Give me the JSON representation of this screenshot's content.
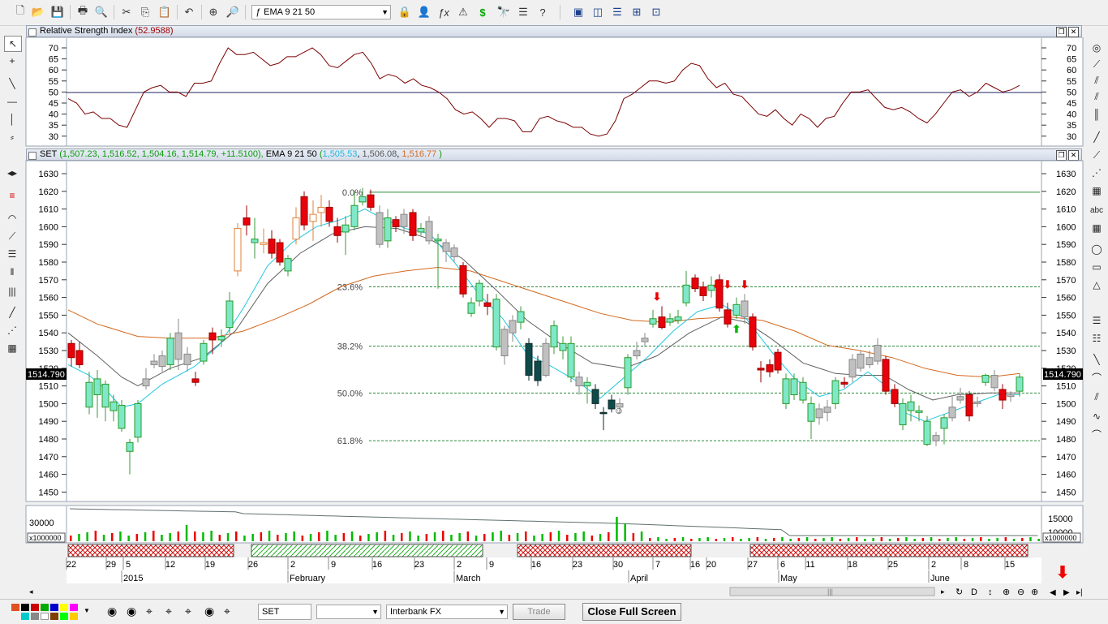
{
  "toolbar": {
    "indicator_combo": "EMA 9 21 50"
  },
  "rsi_panel": {
    "title": "Relative Strength Index",
    "value": "(52.9588)",
    "yticks": [
      "70",
      "65",
      "60",
      "55",
      "50",
      "45",
      "40",
      "35",
      "30"
    ]
  },
  "price_panel": {
    "symbol": "SET",
    "ohlc": " (1,507.23, 1,516.52, 1,504.16, 1,514.79, +11.5100),",
    "ema_label": " EMA 9 21 50 ",
    "ema_open": "(",
    "ema1": "1,505.53",
    "ema2": "1,506.08",
    "ema3": "1,516.77",
    "ema_close": " )",
    "last_price": "1514.790",
    "yticks": [
      "1630",
      "1620",
      "1610",
      "1600",
      "1590",
      "1580",
      "1570",
      "1560",
      "1550",
      "1540",
      "1530",
      "1520",
      "1510",
      "1500",
      "1490",
      "1480",
      "1470",
      "1460",
      "1450"
    ],
    "fib_labels": [
      "0.0%",
      "23.6%",
      "38.2%",
      "50.0%",
      "61.8%"
    ]
  },
  "volume_panel": {
    "yticks_left": [
      "30000"
    ],
    "yticks_right": [
      "15000",
      "10000"
    ],
    "unit_left": "x1000000",
    "unit_right": "x1000000"
  },
  "date_axis": {
    "days": [
      "22",
      "29",
      "5",
      "12",
      "19",
      "26",
      "2",
      "9",
      "16",
      "23",
      "2",
      "9",
      "16",
      "23",
      "30",
      "7",
      "16",
      "20",
      "27",
      "6",
      "11",
      "18",
      "25",
      "2",
      "8",
      "15"
    ],
    "months": [
      "2015",
      "February",
      "March",
      "April",
      "May",
      "June"
    ]
  },
  "bottombar": {
    "symbol_input": "SET",
    "empty_combo": "",
    "feed_combo": "Interbank FX",
    "trade_button": "Trade",
    "fullscreen_button": "Close Full Screen"
  },
  "colors": {
    "up": "#7fe8c8",
    "down": "#e8000a",
    "ema_fast": "#20c8e0",
    "ema_mid": "#606060",
    "ema_slow": "#d2691e",
    "rsi_line": "#7a0000",
    "panel_bg": "#ffffff"
  }
}
